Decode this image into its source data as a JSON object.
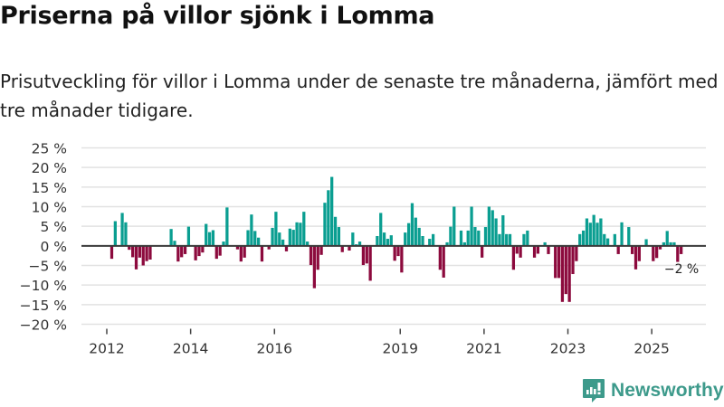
{
  "header": {
    "title": "Priserna på villor sjönk i Lomma",
    "subtitle": "Prisutveckling för villor i Lomma under de senaste tre månaderna, jämfört med tre månader tidigare."
  },
  "brand": {
    "name": "Newsworthy",
    "icon": "newsworthy-logo-icon",
    "color": "#3d9a8b"
  },
  "chart_data": {
    "type": "bar",
    "title": "Priserna på villor sjönk i Lomma",
    "subtitle": "Prisutveckling för villor i Lomma under de senaste tre månaderna, jämfört med tre månader tidigare.",
    "xlabel": "",
    "ylabel": "",
    "ylim": [
      -20,
      25
    ],
    "yticks": [
      25,
      20,
      15,
      10,
      5,
      0,
      -5,
      -10,
      -15,
      -20
    ],
    "ytick_labels": [
      "25 %",
      "20 %",
      "15 %",
      "10 %",
      "5 %",
      "0 %",
      "−5 %",
      "−10 %",
      "−15 %",
      "−20 %"
    ],
    "xticks": [
      {
        "label": "2012",
        "month_index": 0
      },
      {
        "label": "2014",
        "month_index": 24
      },
      {
        "label": "2016",
        "month_index": 48
      },
      {
        "label": "2019",
        "month_index": 84
      },
      {
        "label": "2021",
        "month_index": 108
      },
      {
        "label": "2023",
        "month_index": 132
      },
      {
        "label": "2025",
        "month_index": 156
      }
    ],
    "grid": true,
    "x_start": "2012-01",
    "frequency": "monthly",
    "positive_color": "#0a9e91",
    "negative_color": "#8c0a3d",
    "values": [
      0,
      -3.3,
      6.3,
      0,
      8.4,
      6.0,
      -1.0,
      -2.9,
      -6.0,
      -3.0,
      -5.0,
      -3.9,
      -3.5,
      0,
      0,
      0,
      0,
      0,
      4.3,
      1.3,
      -4.0,
      -2.9,
      -2.1,
      4.9,
      0,
      -3.7,
      -2.6,
      -1.7,
      5.6,
      3.5,
      4.0,
      -3.3,
      -2.5,
      1.1,
      9.8,
      0,
      0,
      -0.9,
      -4.0,
      -3.0,
      4.0,
      8.0,
      3.8,
      2.1,
      -4.0,
      0,
      -0.9,
      4.6,
      8.7,
      3.4,
      1.6,
      -1.4,
      4.4,
      4.1,
      6.0,
      5.9,
      8.7,
      1.1,
      -4.9,
      -10.8,
      -6.1,
      -2.3,
      11.0,
      14.2,
      17.6,
      7.4,
      4.8,
      -1.6,
      0,
      -1.2,
      3.4,
      0.4,
      1.1,
      -4.9,
      -4.5,
      -8.9,
      0,
      2.5,
      8.4,
      3.4,
      1.8,
      2.7,
      -3.8,
      -2.6,
      -6.8,
      3.4,
      5.8,
      10.9,
      7.2,
      4.6,
      2.5,
      0,
      1.8,
      3.0,
      0,
      -6.1,
      -8.1,
      0.9,
      4.9,
      10.0,
      0,
      3.9,
      0.9,
      3.9,
      10.0,
      4.8,
      3.9,
      -3.0,
      4.8,
      10.0,
      9.1,
      7.0,
      3.0,
      7.8,
      3.0,
      3.0,
      -6.1,
      -2.0,
      -3.0,
      3.0,
      3.9,
      0,
      -3.0,
      -2.0,
      0,
      0.9,
      -2.1,
      0,
      -8.2,
      -8.2,
      -14.3,
      -12.3,
      -14.3,
      -7.2,
      -3.9,
      3.0,
      3.9,
      7.0,
      5.9,
      7.9,
      5.9,
      7.0,
      3.0,
      1.9,
      0,
      3.0,
      -2.1,
      6.0,
      0,
      4.8,
      -2.1,
      -6.0,
      -3.9,
      0,
      1.7,
      0,
      -3.9,
      -3.1,
      -0.9,
      0.9,
      3.8,
      0.9,
      0.9,
      -4.1,
      -2.1
    ],
    "annotations": [
      {
        "text": "−2 %",
        "target": "last"
      }
    ]
  }
}
